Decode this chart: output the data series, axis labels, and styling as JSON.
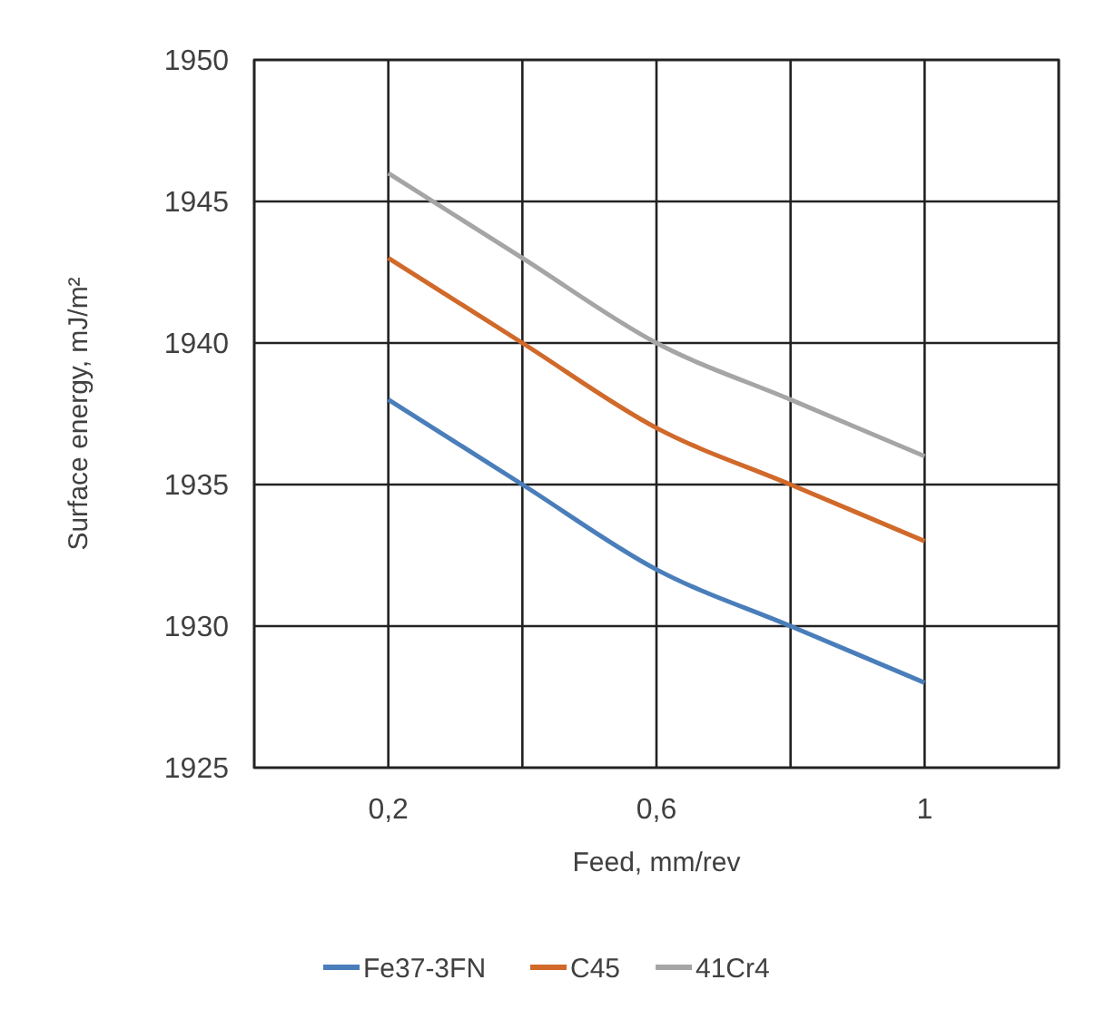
{
  "chart_data": {
    "type": "line",
    "xlabel": "Feed, mm/rev",
    "ylabel": "Surface energy, mJ/m²",
    "x": [
      0.2,
      0.4,
      0.6,
      0.8,
      1
    ],
    "series": [
      {
        "name": "Fe37-3FN",
        "color": "#4a7ebb",
        "values": [
          1938,
          1935,
          1932,
          1930,
          1928
        ]
      },
      {
        "name": "C45",
        "color": "#d0692a",
        "values": [
          1943,
          1940,
          1937,
          1935,
          1933
        ]
      },
      {
        "name": "41Cr4",
        "color": "#a5a5a5",
        "values": [
          1946,
          1943,
          1940,
          1938,
          1936
        ]
      }
    ],
    "xlim": [
      0,
      1.2
    ],
    "xticks": [
      {
        "value": 0,
        "label": null
      },
      {
        "value": 0.2,
        "label": "0,2"
      },
      {
        "value": 0.4,
        "label": null
      },
      {
        "value": 0.6,
        "label": "0,6"
      },
      {
        "value": 0.8,
        "label": null
      },
      {
        "value": 1,
        "label": "1"
      },
      {
        "value": 1.2,
        "label": null
      }
    ],
    "ylim": [
      1925,
      1950
    ],
    "yticks": [
      1925,
      1930,
      1935,
      1940,
      1945,
      1950
    ],
    "grid": true,
    "legend": "bottom",
    "marker": "none",
    "line_style": "solid"
  }
}
